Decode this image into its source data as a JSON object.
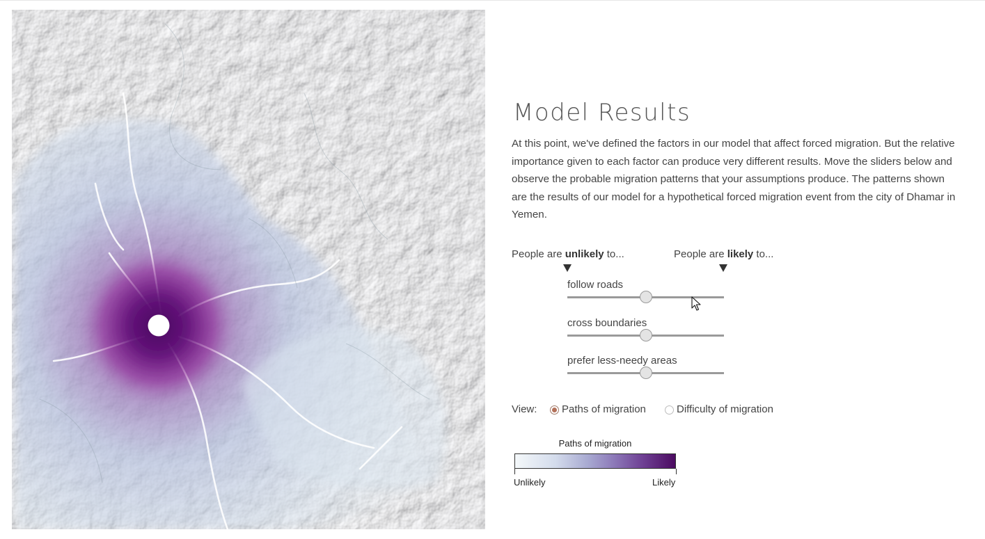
{
  "panel": {
    "title": "Model Results",
    "intro": "At this point, we've defined the factors in our model that affect forced migration. But the relative importance given to each factor can produce very different results. Move the sliders below and observe the probable migration patterns that your assumptions produce. The patterns shown are the results of our model for a hypothetical forced migration event from the city of Dhamar in Yemen."
  },
  "scale": {
    "left_prefix": "People are ",
    "left_emphasis": "unlikely",
    "left_suffix": " to...",
    "right_prefix": "People are ",
    "right_emphasis": "likely",
    "right_suffix": " to..."
  },
  "sliders": [
    {
      "label": "follow roads",
      "value": 0.5
    },
    {
      "label": "cross boundaries",
      "value": 0.5
    },
    {
      "label": "prefer less-needy areas",
      "value": 0.5
    }
  ],
  "view": {
    "label": "View:",
    "options": [
      {
        "label": "Paths of migration",
        "selected": true
      },
      {
        "label": "Difficulty of migration",
        "selected": false
      }
    ]
  },
  "legend": {
    "title": "Paths of migration",
    "min_label": "Unlikely",
    "max_label": "Likely",
    "colors": [
      "#f4f8fa",
      "#a9abd2",
      "#4c0b61"
    ]
  },
  "map": {
    "origin_marker": "origin-city-marker",
    "accent": "#5a0e6e"
  }
}
